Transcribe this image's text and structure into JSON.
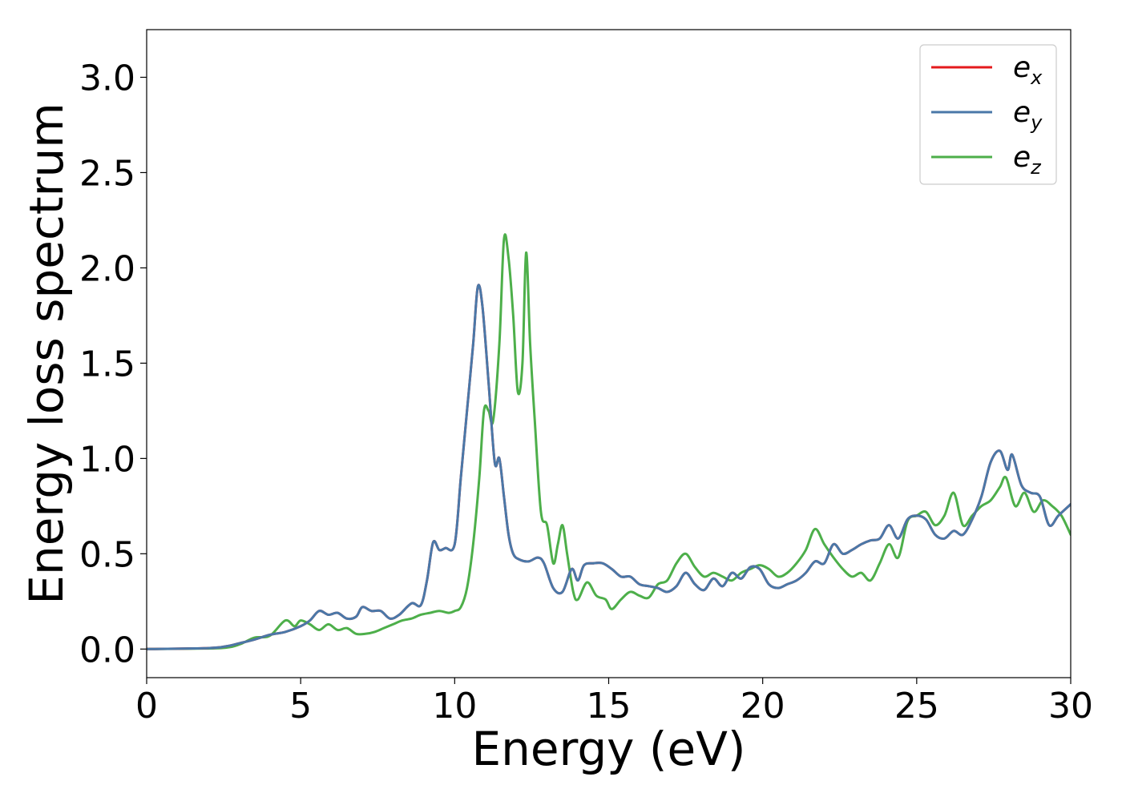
{
  "chart_data": {
    "type": "line",
    "xlabel": "Energy (eV)",
    "ylabel": "Energy loss spectrum",
    "xlim": [
      0,
      30
    ],
    "ylim": [
      -0.15,
      3.25
    ],
    "xticks": [
      0,
      5,
      10,
      15,
      20,
      25,
      30
    ],
    "xtick_labels": [
      "0",
      "5",
      "10",
      "15",
      "20",
      "25",
      "30"
    ],
    "yticks": [
      0.0,
      0.5,
      1.0,
      1.5,
      2.0,
      2.5,
      3.0
    ],
    "ytick_labels": [
      "0.0",
      "0.5",
      "1.0",
      "1.5",
      "2.0",
      "2.5",
      "3.0"
    ],
    "grid": false,
    "legend_position": "top-right",
    "series": [
      {
        "name": "e_x",
        "legend_main": "e",
        "legend_sub": "x",
        "color": "#e41a1c",
        "x": [
          0,
          2,
          2.6,
          3,
          3.5,
          4,
          4.5,
          5,
          5.3,
          5.6,
          5.9,
          6.2,
          6.5,
          6.8,
          7.0,
          7.3,
          7.6,
          7.9,
          8.2,
          8.6,
          8.9,
          9.1,
          9.3,
          9.5,
          9.7,
          10.0,
          10.2,
          10.4,
          10.6,
          10.75,
          10.9,
          11.1,
          11.3,
          11.45,
          11.6,
          11.75,
          11.9,
          12.1,
          12.4,
          12.7,
          12.9,
          13.2,
          13.5,
          13.8,
          14.0,
          14.2,
          14.5,
          14.8,
          15.1,
          15.4,
          15.7,
          16.0,
          16.3,
          16.6,
          16.9,
          17.2,
          17.5,
          17.8,
          18.1,
          18.4,
          18.7,
          19.0,
          19.3,
          19.6,
          19.9,
          20.2,
          20.5,
          20.8,
          21.1,
          21.4,
          21.7,
          22.0,
          22.3,
          22.6,
          22.9,
          23.2,
          23.5,
          23.8,
          24.1,
          24.4,
          24.7,
          25.0,
          25.3,
          25.6,
          25.9,
          26.2,
          26.5,
          26.8,
          27.1,
          27.4,
          27.7,
          27.95,
          28.1,
          28.4,
          28.7,
          29.0,
          29.3,
          29.6,
          30.0
        ],
        "y": [
          0.0,
          0.005,
          0.015,
          0.03,
          0.05,
          0.075,
          0.09,
          0.12,
          0.15,
          0.2,
          0.18,
          0.19,
          0.16,
          0.17,
          0.22,
          0.2,
          0.2,
          0.16,
          0.18,
          0.24,
          0.23,
          0.36,
          0.56,
          0.52,
          0.53,
          0.55,
          0.9,
          1.25,
          1.6,
          1.9,
          1.8,
          1.4,
          0.98,
          1.0,
          0.8,
          0.6,
          0.5,
          0.47,
          0.46,
          0.48,
          0.45,
          0.32,
          0.3,
          0.42,
          0.36,
          0.44,
          0.45,
          0.45,
          0.42,
          0.38,
          0.38,
          0.34,
          0.33,
          0.32,
          0.3,
          0.33,
          0.4,
          0.34,
          0.31,
          0.37,
          0.33,
          0.4,
          0.37,
          0.43,
          0.42,
          0.34,
          0.32,
          0.34,
          0.36,
          0.4,
          0.46,
          0.45,
          0.55,
          0.5,
          0.52,
          0.55,
          0.57,
          0.58,
          0.65,
          0.58,
          0.68,
          0.7,
          0.68,
          0.6,
          0.58,
          0.62,
          0.6,
          0.68,
          0.8,
          0.98,
          1.04,
          0.94,
          1.02,
          0.86,
          0.82,
          0.8,
          0.65,
          0.7,
          0.76
        ]
      },
      {
        "name": "e_y",
        "legend_main": "e",
        "legend_sub": "y",
        "color": "#4a78a8",
        "x": [
          0,
          2,
          2.6,
          3,
          3.5,
          4,
          4.5,
          5,
          5.3,
          5.6,
          5.9,
          6.2,
          6.5,
          6.8,
          7.0,
          7.3,
          7.6,
          7.9,
          8.2,
          8.6,
          8.9,
          9.1,
          9.3,
          9.5,
          9.7,
          10.0,
          10.2,
          10.4,
          10.6,
          10.75,
          10.9,
          11.1,
          11.3,
          11.45,
          11.6,
          11.75,
          11.9,
          12.1,
          12.4,
          12.7,
          12.9,
          13.2,
          13.5,
          13.8,
          14.0,
          14.2,
          14.5,
          14.8,
          15.1,
          15.4,
          15.7,
          16.0,
          16.3,
          16.6,
          16.9,
          17.2,
          17.5,
          17.8,
          18.1,
          18.4,
          18.7,
          19.0,
          19.3,
          19.6,
          19.9,
          20.2,
          20.5,
          20.8,
          21.1,
          21.4,
          21.7,
          22.0,
          22.3,
          22.6,
          22.9,
          23.2,
          23.5,
          23.8,
          24.1,
          24.4,
          24.7,
          25.0,
          25.3,
          25.6,
          25.9,
          26.2,
          26.5,
          26.8,
          27.1,
          27.4,
          27.7,
          27.95,
          28.1,
          28.4,
          28.7,
          29.0,
          29.3,
          29.6,
          30.0
        ],
        "y": [
          0.0,
          0.005,
          0.015,
          0.03,
          0.05,
          0.075,
          0.09,
          0.12,
          0.15,
          0.2,
          0.18,
          0.19,
          0.16,
          0.17,
          0.22,
          0.2,
          0.2,
          0.16,
          0.18,
          0.24,
          0.23,
          0.36,
          0.56,
          0.52,
          0.53,
          0.55,
          0.9,
          1.25,
          1.6,
          1.9,
          1.8,
          1.4,
          0.98,
          1.0,
          0.8,
          0.6,
          0.5,
          0.47,
          0.46,
          0.48,
          0.45,
          0.32,
          0.3,
          0.42,
          0.36,
          0.44,
          0.45,
          0.45,
          0.42,
          0.38,
          0.38,
          0.34,
          0.33,
          0.32,
          0.3,
          0.33,
          0.4,
          0.34,
          0.31,
          0.37,
          0.33,
          0.4,
          0.37,
          0.43,
          0.42,
          0.34,
          0.32,
          0.34,
          0.36,
          0.4,
          0.46,
          0.45,
          0.55,
          0.5,
          0.52,
          0.55,
          0.57,
          0.58,
          0.65,
          0.58,
          0.68,
          0.7,
          0.68,
          0.6,
          0.58,
          0.62,
          0.6,
          0.68,
          0.8,
          0.98,
          1.04,
          0.94,
          1.02,
          0.86,
          0.82,
          0.8,
          0.65,
          0.7,
          0.76
        ]
      },
      {
        "name": "e_z",
        "legend_main": "e",
        "legend_sub": "z",
        "color": "#4daf4a",
        "x": [
          0,
          2,
          2.7,
          3.1,
          3.5,
          4.0,
          4.5,
          4.8,
          5.0,
          5.3,
          5.6,
          5.9,
          6.2,
          6.5,
          6.8,
          7.1,
          7.4,
          7.7,
          8.0,
          8.3,
          8.6,
          8.9,
          9.2,
          9.5,
          9.8,
          10.0,
          10.2,
          10.4,
          10.6,
          10.8,
          10.95,
          11.1,
          11.25,
          11.45,
          11.6,
          11.75,
          11.9,
          12.05,
          12.2,
          12.32,
          12.45,
          12.6,
          12.8,
          13.0,
          13.2,
          13.35,
          13.5,
          13.65,
          13.85,
          14.0,
          14.3,
          14.6,
          14.9,
          15.1,
          15.4,
          15.7,
          16.0,
          16.3,
          16.6,
          16.9,
          17.2,
          17.5,
          17.8,
          18.1,
          18.4,
          18.7,
          19.0,
          19.3,
          19.6,
          19.9,
          20.2,
          20.5,
          20.8,
          21.1,
          21.4,
          21.7,
          22.0,
          22.3,
          22.6,
          22.9,
          23.2,
          23.5,
          23.8,
          24.1,
          24.4,
          24.7,
          25.0,
          25.3,
          25.6,
          25.9,
          26.2,
          26.5,
          26.8,
          27.1,
          27.4,
          27.7,
          27.9,
          28.2,
          28.5,
          28.8,
          29.1,
          29.4,
          29.7,
          30.0
        ],
        "y": [
          0.0,
          0.003,
          0.01,
          0.03,
          0.06,
          0.07,
          0.15,
          0.12,
          0.15,
          0.13,
          0.1,
          0.13,
          0.1,
          0.11,
          0.08,
          0.08,
          0.09,
          0.11,
          0.13,
          0.15,
          0.16,
          0.18,
          0.19,
          0.2,
          0.19,
          0.2,
          0.22,
          0.32,
          0.55,
          0.9,
          1.25,
          1.25,
          1.2,
          1.6,
          2.15,
          2.05,
          1.75,
          1.35,
          1.5,
          2.08,
          1.6,
          1.2,
          0.72,
          0.65,
          0.45,
          0.55,
          0.65,
          0.5,
          0.3,
          0.26,
          0.35,
          0.28,
          0.26,
          0.21,
          0.26,
          0.3,
          0.28,
          0.27,
          0.34,
          0.36,
          0.45,
          0.5,
          0.43,
          0.38,
          0.4,
          0.38,
          0.36,
          0.4,
          0.42,
          0.44,
          0.42,
          0.38,
          0.4,
          0.45,
          0.52,
          0.63,
          0.55,
          0.48,
          0.42,
          0.38,
          0.4,
          0.36,
          0.45,
          0.55,
          0.48,
          0.67,
          0.7,
          0.72,
          0.65,
          0.7,
          0.82,
          0.65,
          0.7,
          0.75,
          0.78,
          0.85,
          0.9,
          0.75,
          0.82,
          0.72,
          0.78,
          0.75,
          0.7,
          0.6
        ]
      }
    ]
  }
}
